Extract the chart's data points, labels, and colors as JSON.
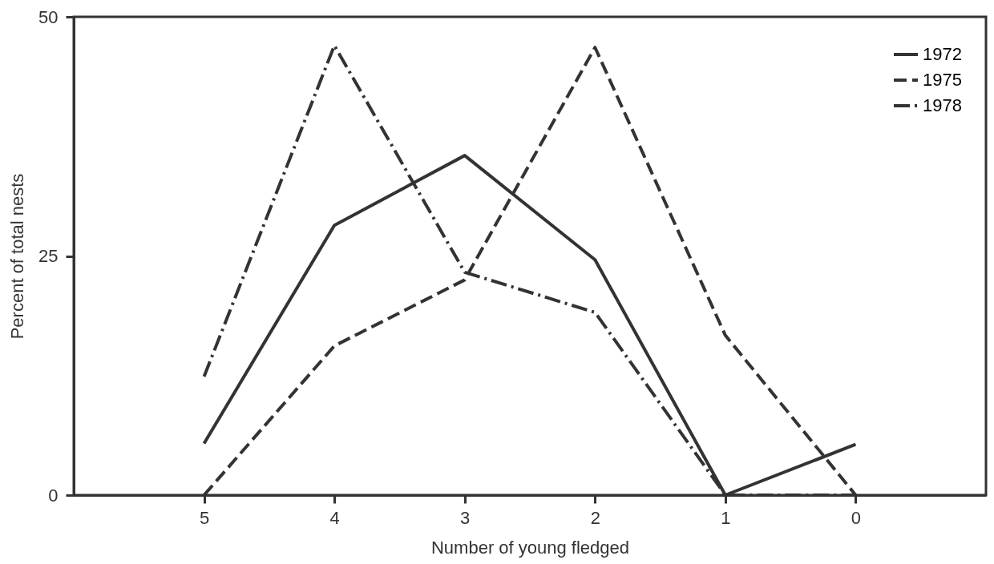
{
  "chart_data": {
    "type": "line",
    "xlabel": "Number of young fledged",
    "ylabel": "Percent of  total nests",
    "x": [
      5,
      4,
      3,
      2,
      1,
      0
    ],
    "xlim": [
      6,
      -1
    ],
    "xticks": [
      5,
      4,
      3,
      2,
      1,
      0
    ],
    "ylim": [
      0,
      50
    ],
    "yticks": [
      0,
      25,
      50
    ],
    "series": [
      {
        "name": "1972",
        "color": "#333333",
        "line_style": "solid",
        "values": [
          5.4,
          28.2,
          35.5,
          24.6,
          0,
          5.3
        ]
      },
      {
        "name": "1975",
        "color": "#333333",
        "line_style": "dashed",
        "values": [
          0,
          15.6,
          22.5,
          46.8,
          16.7,
          0
        ]
      },
      {
        "name": "1978",
        "color": "#333333",
        "line_style": "dashdot",
        "values": [
          12.4,
          47.0,
          23.3,
          19.1,
          0,
          0
        ]
      }
    ],
    "grid": false,
    "legend": "top right",
    "marker": "none"
  }
}
